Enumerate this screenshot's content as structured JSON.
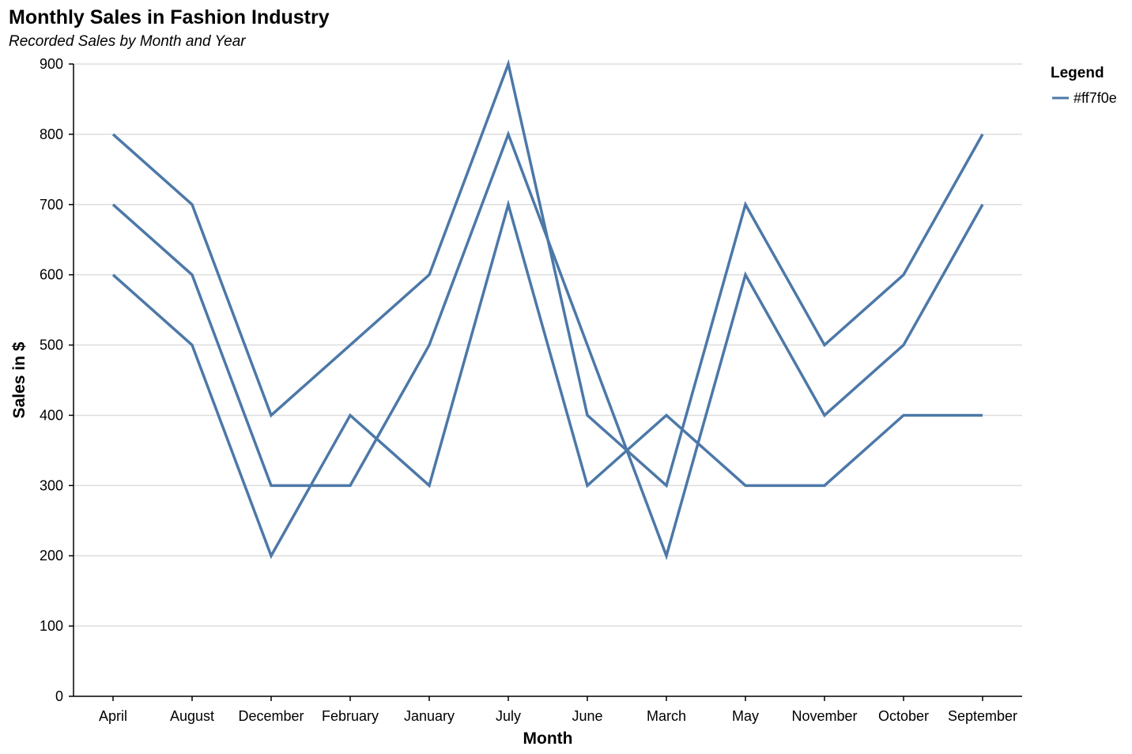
{
  "chart_data": {
    "type": "line",
    "title": "Monthly Sales in Fashion Industry",
    "subtitle": "Recorded Sales by Month and Year",
    "xlabel": "Month",
    "ylabel": "Sales in $",
    "ylim": [
      0,
      900
    ],
    "yticks": [
      0,
      100,
      200,
      300,
      400,
      500,
      600,
      700,
      800,
      900
    ],
    "grid": true,
    "line_color": "#4c78a8",
    "categories": [
      "April",
      "August",
      "December",
      "February",
      "January",
      "July",
      "June",
      "March",
      "May",
      "November",
      "October",
      "September"
    ],
    "legend": {
      "title": "Legend",
      "position": "top-right",
      "entries": [
        "#ff7f0e"
      ]
    },
    "series": [
      {
        "values": [
          800,
          700,
          400,
          500,
          600,
          900,
          400,
          300,
          700,
          500,
          600,
          800
        ]
      },
      {
        "values": [
          700,
          600,
          300,
          300,
          500,
          800,
          500,
          200,
          600,
          400,
          500,
          700
        ]
      },
      {
        "values": [
          600,
          500,
          200,
          400,
          300,
          700,
          300,
          400,
          300,
          300,
          400,
          400
        ]
      }
    ]
  }
}
